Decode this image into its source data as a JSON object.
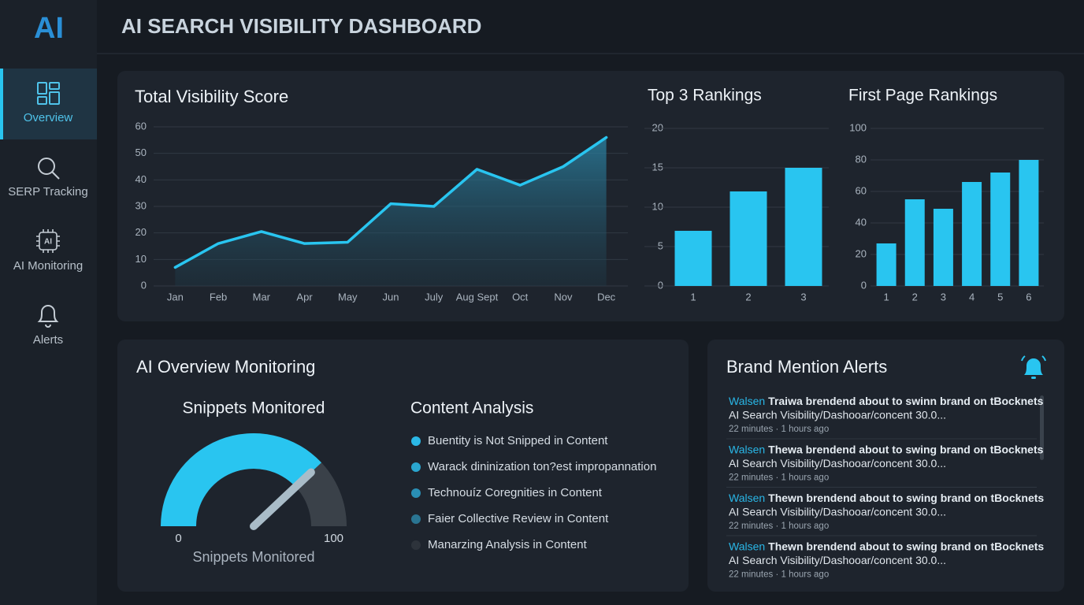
{
  "sidebar": {
    "logo": "AI",
    "nav": [
      {
        "label": "Overview",
        "active": true
      },
      {
        "label": "SERP Tracking",
        "active": false
      },
      {
        "label": "AI Monitoring",
        "active": false
      },
      {
        "label": "Alerts",
        "active": false
      }
    ]
  },
  "header": {
    "title": "AI SEARCH VISIBILITY DASHBOARD"
  },
  "chart_data": [
    {
      "type": "line",
      "title": "Total Visibility Score",
      "categories": [
        "Jan",
        "Feb",
        "Mar",
        "Apr",
        "May",
        "Jun",
        "July",
        "Aug Sept",
        "Oct",
        "Nov",
        "Dec"
      ],
      "values": [
        7,
        16,
        20.5,
        16,
        16.5,
        31,
        30,
        44,
        38,
        45,
        56
      ],
      "color": "#29c5f0",
      "ylim": [
        0,
        60
      ],
      "yticks": [
        0,
        10,
        20,
        30,
        40,
        50,
        60
      ],
      "grid": true
    },
    {
      "type": "bar",
      "title": "Top 3 Rankings",
      "categories": [
        "1",
        "2",
        "3"
      ],
      "values": [
        7,
        12,
        15
      ],
      "color": "#29c5f0",
      "ylim": [
        0,
        20
      ],
      "yticks": [
        0,
        5,
        10,
        15,
        20
      ],
      "grid": true
    },
    {
      "type": "bar",
      "title": "First Page Rankings",
      "categories": [
        "1",
        "2",
        "3",
        "4",
        "5",
        "6"
      ],
      "values": [
        27,
        55,
        49,
        66,
        72,
        80
      ],
      "color": "#29c5f0",
      "ylim": [
        0,
        100
      ],
      "yticks": [
        0,
        20,
        40,
        60,
        80,
        100
      ],
      "grid": true
    },
    {
      "type": "gauge",
      "title": "Snippets Monitored",
      "label": "Snippets Monitored",
      "value": 76,
      "range": [
        0,
        100
      ],
      "ticks": [
        0,
        100
      ],
      "color": "#29c5f0",
      "track_color": "#3a4149"
    }
  ],
  "monitoring": {
    "title": "AI Overview Monitoring"
  },
  "content_analysis": {
    "title": "Content Analysis",
    "items": [
      {
        "label": "Buentity is Not Snipped in Content",
        "color": "#2bb8e6"
      },
      {
        "label": "Warack dininization ton?est impropannation",
        "color": "#2aa6cf"
      },
      {
        "label": "Technouíz Coregnities in Content",
        "color": "#2a8fb5"
      },
      {
        "label": "Faier Collective Review in Content",
        "color": "#2a7592"
      },
      {
        "label": "Manarzing Analysis in Content",
        "color": "#2d333b"
      }
    ]
  },
  "alerts": {
    "title": "Brand Mention Alerts",
    "items": [
      {
        "source": "Walsen",
        "text": "Traiwa brendend about to swinn brand on tBocknets",
        "detail": "AI Search Visibility/Dashooar/concent 30.0...",
        "time": "22 minutes · 1 hours ago"
      },
      {
        "source": "Walsen",
        "text": "Thewa brendend about to swing brand on tBocknets",
        "detail": "AI Search Visibility/Dashooar/concent 30.0...",
        "time": "22 minutes · 1 hours ago"
      },
      {
        "source": "Walsen",
        "text": "Thewn brendend about to swing brand on tBocknets",
        "detail": "AI Search Visibility/Dashooar/concent 30.0...",
        "time": "22 minutes · 1 hours ago"
      },
      {
        "source": "Walsen",
        "text": "Thewn brendend about to swing brand on tBocknets",
        "detail": "AI Search Visibility/Dashooar/concent 30.0...",
        "time": "22 minutes · 1 hours ago"
      }
    ]
  }
}
